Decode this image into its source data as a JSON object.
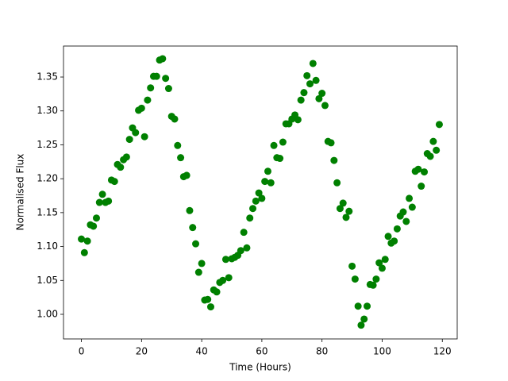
{
  "chart_data": {
    "type": "scatter",
    "xlabel": "Time (Hours)",
    "ylabel": "Normalised Flux",
    "color": "#008000",
    "x": [
      0,
      1,
      2,
      3,
      4,
      5,
      6,
      7,
      8,
      9,
      10,
      11,
      12,
      13,
      14,
      15,
      16,
      17,
      18,
      19,
      20,
      21,
      22,
      23,
      24,
      25,
      26,
      27,
      28,
      29,
      30,
      31,
      32,
      33,
      34,
      35,
      36,
      37,
      38,
      39,
      40,
      41,
      42,
      43,
      44,
      45,
      46,
      47,
      48,
      49,
      50,
      51,
      52,
      53,
      54,
      55,
      56,
      57,
      58,
      59,
      60,
      61,
      62,
      63,
      64,
      65,
      66,
      67,
      68,
      69,
      70,
      71,
      72,
      73,
      74,
      75,
      76,
      77,
      78,
      79,
      80,
      81,
      82,
      83,
      84,
      85,
      86,
      87,
      88,
      89,
      90,
      91,
      92,
      93,
      94,
      95,
      96,
      97,
      98,
      99,
      100,
      101,
      102,
      103,
      104,
      105,
      106,
      107,
      108,
      109,
      110,
      111,
      112,
      113,
      114,
      115,
      116,
      117,
      118,
      119
    ],
    "values": [
      1.111,
      1.091,
      1.108,
      1.132,
      1.13,
      1.142,
      1.165,
      1.177,
      1.165,
      1.167,
      1.198,
      1.196,
      1.221,
      1.217,
      1.228,
      1.232,
      1.258,
      1.275,
      1.268,
      1.301,
      1.304,
      1.262,
      1.316,
      1.334,
      1.351,
      1.351,
      1.375,
      1.377,
      1.348,
      1.333,
      1.292,
      1.288,
      1.249,
      1.231,
      1.203,
      1.205,
      1.153,
      1.128,
      1.104,
      1.062,
      1.075,
      1.021,
      1.022,
      1.011,
      1.036,
      1.033,
      1.047,
      1.05,
      1.081,
      1.054,
      1.082,
      1.084,
      1.087,
      1.094,
      1.121,
      1.098,
      1.142,
      1.156,
      1.167,
      1.179,
      1.171,
      1.196,
      1.211,
      1.194,
      1.249,
      1.231,
      1.23,
      1.254,
      1.281,
      1.281,
      1.288,
      1.294,
      1.287,
      1.316,
      1.327,
      1.352,
      1.34,
      1.37,
      1.345,
      1.318,
      1.326,
      1.308,
      1.255,
      1.253,
      1.227,
      1.194,
      1.156,
      1.164,
      1.143,
      1.152,
      1.071,
      1.052,
      1.012,
      0.984,
      0.993,
      1.012,
      1.044,
      1.043,
      1.052,
      1.076,
      1.068,
      1.081,
      1.115,
      1.105,
      1.108,
      1.126,
      1.145,
      1.151,
      1.137,
      1.171,
      1.158,
      1.211,
      1.214,
      1.189,
      1.21,
      1.237,
      1.233,
      1.255,
      1.242,
      1.28
    ],
    "xlim": [
      -5.95,
      124.95
    ],
    "xticks": [
      0,
      20,
      40,
      60,
      80,
      100,
      120
    ],
    "ylim": [
      0.9637,
      1.3957
    ],
    "yticks": [
      {
        "value": 1.0,
        "label": "1.00"
      },
      {
        "value": 1.05,
        "label": "1.05"
      },
      {
        "value": 1.1,
        "label": "1.10"
      },
      {
        "value": 1.15,
        "label": "1.15"
      },
      {
        "value": 1.2,
        "label": "1.20"
      },
      {
        "value": 1.25,
        "label": "1.25"
      },
      {
        "value": 1.3,
        "label": "1.30"
      },
      {
        "value": 1.35,
        "label": "1.35"
      }
    ]
  }
}
